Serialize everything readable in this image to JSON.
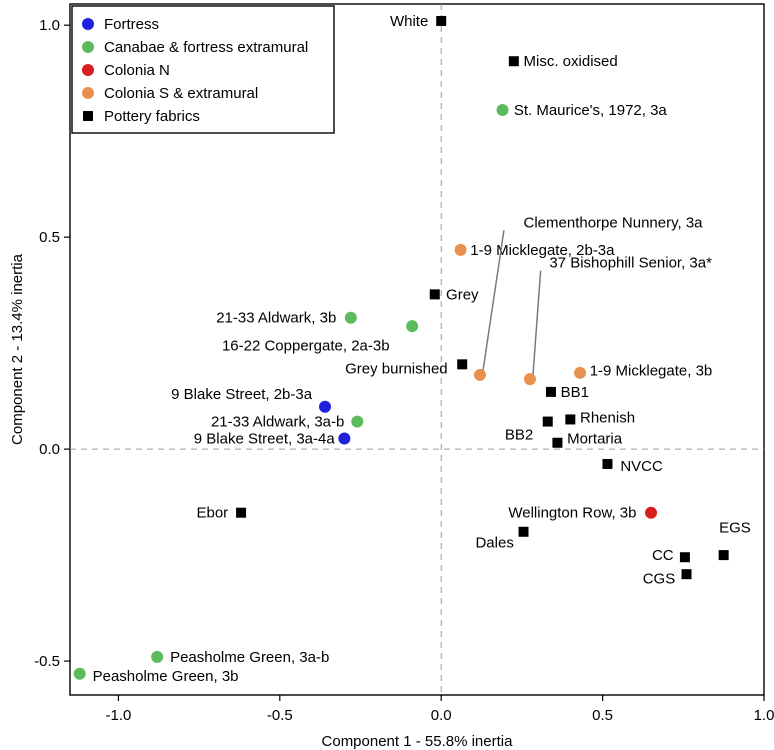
{
  "chart_data": {
    "type": "scatter",
    "xlabel": "Component 1 - 55.8% inertia",
    "ylabel": "Component 2 - 13.4% inertia",
    "xlim": [
      -1.15,
      1.0
    ],
    "ylim": [
      -0.58,
      1.05
    ],
    "xticks": [
      -1.0,
      -0.5,
      0.0,
      0.5,
      1.0
    ],
    "xtick_labels": [
      "-1.0",
      "-0.5",
      "0.0",
      "0.5",
      "1.0"
    ],
    "yticks": [
      -0.5,
      0.0,
      0.5,
      1.0
    ],
    "ytick_labels": [
      "-0.5",
      "0.0",
      "0.5",
      "1.0"
    ],
    "reference_lines": {
      "x": 0,
      "y": 0,
      "style": "dashed"
    },
    "legend": {
      "position": "top-left",
      "entries": [
        {
          "name": "Fortress",
          "color": "#1f1fdc",
          "marker": "circle"
        },
        {
          "name": "Canabae & fortress extramural",
          "color": "#5cbb5c",
          "marker": "circle"
        },
        {
          "name": "Colonia N",
          "color": "#d81e1e",
          "marker": "circle"
        },
        {
          "name": "Colonia S & extramural",
          "color": "#e8904e",
          "marker": "circle"
        },
        {
          "name": "Pottery fabrics",
          "color": "#000000",
          "marker": "square"
        }
      ]
    },
    "series": [
      {
        "name": "Fortress",
        "color": "#1f1fdc",
        "marker": "circle",
        "points": [
          {
            "x": -0.36,
            "y": 0.1,
            "label": "9 Blake Street, 2b-3a",
            "anchor": "end",
            "lx": -0.04,
            "ly": 0.03
          },
          {
            "x": -0.3,
            "y": 0.025,
            "label": "9 Blake Street, 3a-4a",
            "anchor": "end",
            "lx": -0.03,
            "ly": 0.0
          }
        ]
      },
      {
        "name": "Canabae & fortress extramural",
        "color": "#5cbb5c",
        "marker": "circle",
        "points": [
          {
            "x": 0.19,
            "y": 0.8,
            "label": "St. Maurice's, 1972, 3a",
            "anchor": "start",
            "lx": 0.035,
            "ly": 0.0
          },
          {
            "x": -0.28,
            "y": 0.31,
            "label": "21-33 Aldwark, 3b",
            "anchor": "end",
            "lx": -0.045,
            "ly": 0.0
          },
          {
            "x": -0.09,
            "y": 0.29,
            "label": "16-22 Coppergate, 2a-3b",
            "anchor": "end",
            "lx": -0.07,
            "ly": -0.045
          },
          {
            "x": -0.26,
            "y": 0.065,
            "label": "21-33 Aldwark, 3a-b",
            "anchor": "end",
            "lx": -0.04,
            "ly": 0.0
          },
          {
            "x": -0.88,
            "y": -0.49,
            "label": "Peasholme Green, 3a-b",
            "anchor": "start",
            "lx": 0.04,
            "ly": 0.0
          },
          {
            "x": -1.12,
            "y": -0.53,
            "label": "Peasholme Green, 3b",
            "anchor": "start",
            "lx": 0.04,
            "ly": -0.005
          }
        ]
      },
      {
        "name": "Colonia N",
        "color": "#d81e1e",
        "marker": "circle",
        "points": [
          {
            "x": 0.65,
            "y": -0.15,
            "label": "Wellington Row, 3b",
            "anchor": "end",
            "lx": -0.045,
            "ly": 0.0
          }
        ]
      },
      {
        "name": "Colonia S & extramural",
        "color": "#e8904e",
        "marker": "circle",
        "points": [
          {
            "x": 0.06,
            "y": 0.47,
            "label": "1-9 Micklegate, 2b-3a",
            "anchor": "start",
            "lx": 0.03,
            "ly": 0.0
          },
          {
            "x": 0.12,
            "y": 0.175,
            "label": "Clementhorpe Nunnery, 3a",
            "anchor": "start",
            "lx": 0.135,
            "ly": 0.36,
            "leader": true
          },
          {
            "x": 0.275,
            "y": 0.165,
            "label": "37 Bishophill Senior, 3a*",
            "anchor": "start",
            "lx": 0.06,
            "ly": 0.275,
            "leader": true
          },
          {
            "x": 0.43,
            "y": 0.18,
            "label": "1-9 Micklegate, 3b",
            "anchor": "start",
            "lx": 0.03,
            "ly": 0.005
          }
        ]
      },
      {
        "name": "Pottery fabrics",
        "color": "#000000",
        "marker": "square",
        "points": [
          {
            "x": 0.0,
            "y": 1.01,
            "label": "White",
            "anchor": "end",
            "lx": -0.04,
            "ly": 0.0
          },
          {
            "x": 0.225,
            "y": 0.915,
            "label": "Misc. oxidised",
            "anchor": "start",
            "lx": 0.03,
            "ly": 0.0
          },
          {
            "x": -0.02,
            "y": 0.365,
            "label": "Grey",
            "anchor": "start",
            "lx": 0.035,
            "ly": 0.0
          },
          {
            "x": 0.065,
            "y": 0.2,
            "label": "Grey burnished",
            "anchor": "end",
            "lx": -0.045,
            "ly": -0.01
          },
          {
            "x": 0.34,
            "y": 0.135,
            "label": "BB1",
            "anchor": "start",
            "lx": 0.03,
            "ly": 0.0
          },
          {
            "x": 0.4,
            "y": 0.07,
            "label": "Rhenish",
            "anchor": "start",
            "lx": 0.03,
            "ly": 0.005
          },
          {
            "x": 0.33,
            "y": 0.065,
            "label": "BB2",
            "anchor": "end",
            "lx": -0.045,
            "ly": -0.03
          },
          {
            "x": 0.36,
            "y": 0.015,
            "label": "Mortaria",
            "anchor": "start",
            "lx": 0.03,
            "ly": 0.01
          },
          {
            "x": 0.515,
            "y": -0.035,
            "label": "NVCC",
            "anchor": "start",
            "lx": 0.04,
            "ly": -0.005
          },
          {
            "x": -0.62,
            "y": -0.15,
            "label": "Ebor",
            "anchor": "end",
            "lx": -0.04,
            "ly": 0.0
          },
          {
            "x": 0.255,
            "y": -0.195,
            "label": "Dales",
            "anchor": "end",
            "lx": -0.03,
            "ly": -0.025
          },
          {
            "x": 0.755,
            "y": -0.255,
            "label": "CC",
            "anchor": "end",
            "lx": -0.035,
            "ly": 0.005
          },
          {
            "x": 0.76,
            "y": -0.295,
            "label": "CGS",
            "anchor": "end",
            "lx": -0.035,
            "ly": -0.01
          },
          {
            "x": 0.875,
            "y": -0.25,
            "label": "EGS",
            "anchor": "middle",
            "lx": 0.035,
            "ly": 0.065
          }
        ]
      }
    ]
  }
}
